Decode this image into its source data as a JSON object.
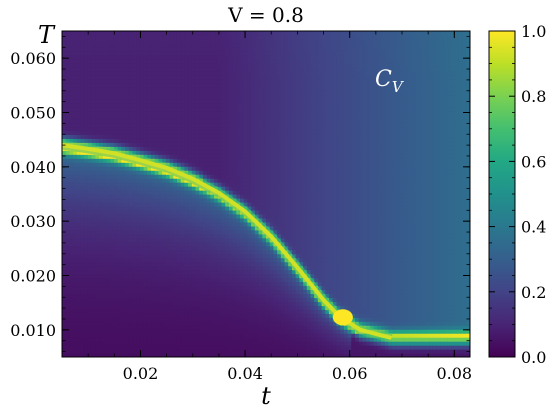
{
  "chart_data": {
    "type": "heatmap",
    "title": "V = 0.8",
    "xlabel": "t",
    "ylabel": "T",
    "annotation": {
      "main": "C",
      "sub": "V"
    },
    "xlim": [
      0.005,
      0.083
    ],
    "ylim": [
      0.005,
      0.065
    ],
    "xticks": [
      {
        "value": 0.02,
        "label": "0.02"
      },
      {
        "value": 0.04,
        "label": "0.04"
      },
      {
        "value": 0.06,
        "label": "0.06"
      },
      {
        "value": 0.08,
        "label": "0.08"
      }
    ],
    "yticks": [
      {
        "value": 0.01,
        "label": "0.010"
      },
      {
        "value": 0.02,
        "label": "0.020"
      },
      {
        "value": 0.03,
        "label": "0.030"
      },
      {
        "value": 0.04,
        "label": "0.040"
      },
      {
        "value": 0.05,
        "label": "0.050"
      },
      {
        "value": 0.06,
        "label": "0.060"
      }
    ],
    "colorbar": {
      "range": [
        0.0,
        1.0
      ],
      "colormap": "viridis",
      "ticks": [
        {
          "value": 0.0,
          "label": "0.0"
        },
        {
          "value": 0.2,
          "label": "0.2"
        },
        {
          "value": 0.4,
          "label": "0.4"
        },
        {
          "value": 0.6,
          "label": "0.6"
        },
        {
          "value": 0.8,
          "label": "0.8"
        },
        {
          "value": 1.0,
          "label": "1.0"
        }
      ]
    },
    "transition_line": [
      {
        "t": 0.005,
        "T": 0.044
      },
      {
        "t": 0.01,
        "T": 0.0433
      },
      {
        "t": 0.015,
        "T": 0.0425
      },
      {
        "t": 0.02,
        "T": 0.0412
      },
      {
        "t": 0.025,
        "T": 0.0398
      },
      {
        "t": 0.03,
        "T": 0.0378
      },
      {
        "t": 0.035,
        "T": 0.0352
      },
      {
        "t": 0.04,
        "T": 0.0318
      },
      {
        "t": 0.045,
        "T": 0.0272
      },
      {
        "t": 0.05,
        "T": 0.0215
      },
      {
        "t": 0.055,
        "T": 0.0155
      },
      {
        "t": 0.058,
        "T": 0.0125
      },
      {
        "t": 0.062,
        "T": 0.01
      },
      {
        "t": 0.068,
        "T": 0.0085
      }
    ],
    "hotspot": {
      "t": 0.0587,
      "T": 0.0123,
      "value": 1.0
    }
  }
}
